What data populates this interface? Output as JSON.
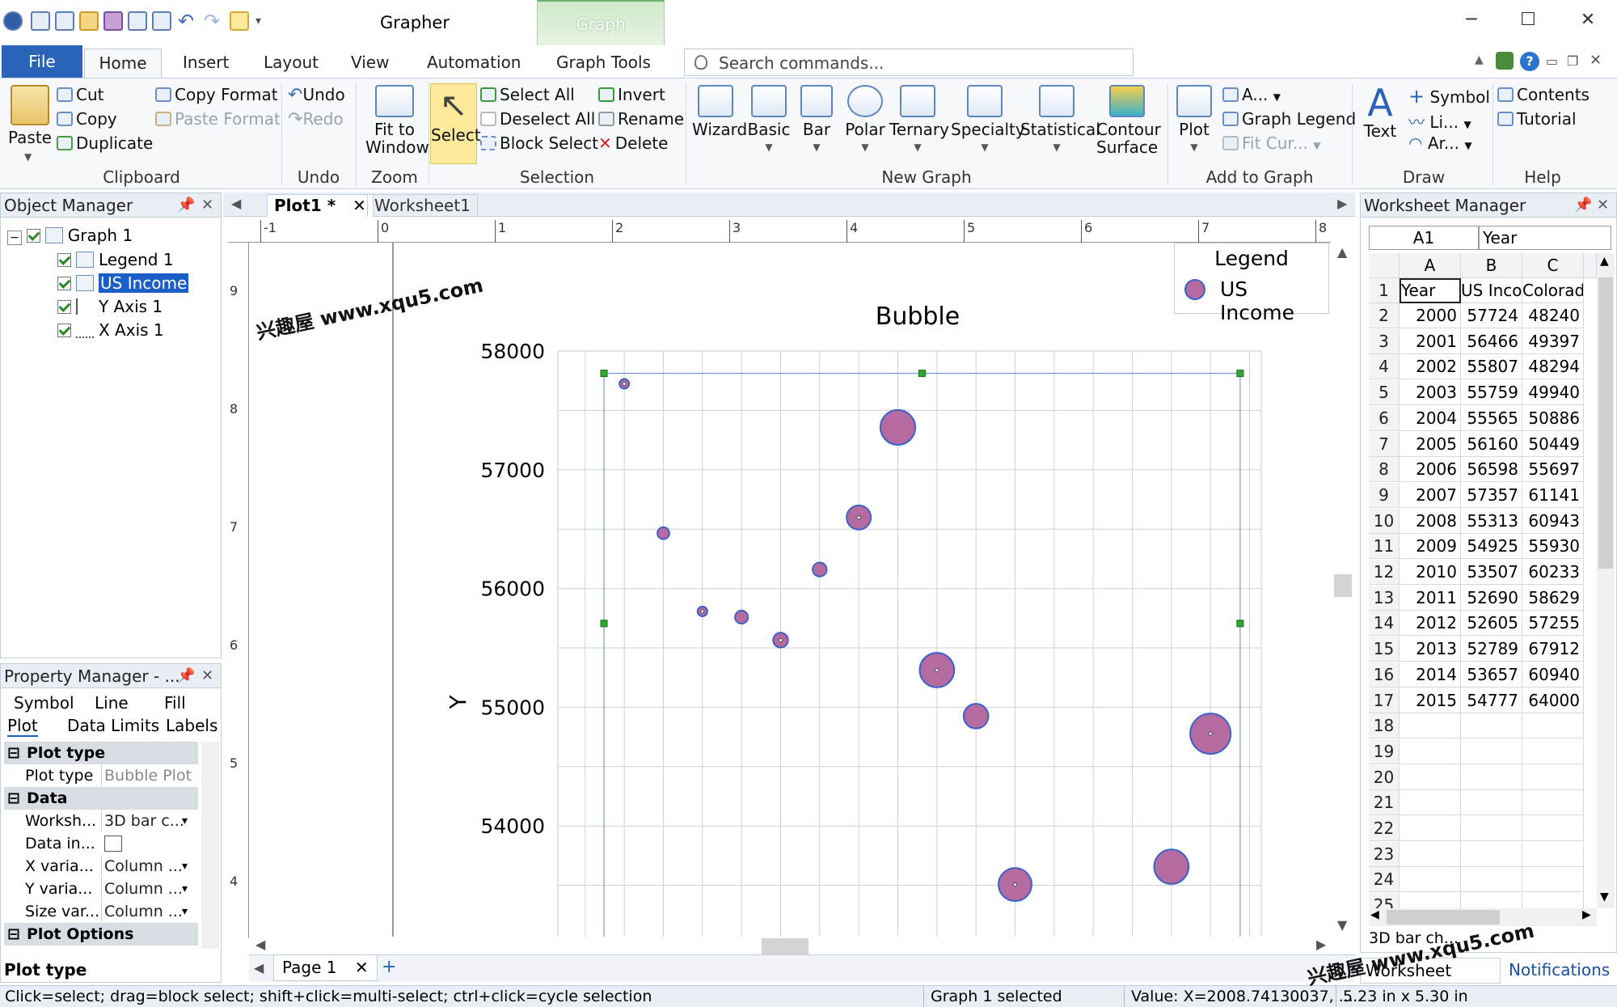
{
  "app": {
    "title": "Grapher",
    "context_tab": "Graph"
  },
  "ribbon_tabs": [
    "File",
    "Home",
    "Insert",
    "Layout",
    "View",
    "Automation",
    "Graph Tools"
  ],
  "search": {
    "placeholder": "Search commands..."
  },
  "clipboard": {
    "paste": "Paste",
    "cut": "Cut",
    "copy": "Copy",
    "duplicate": "Duplicate",
    "copy_format": "Copy Format",
    "paste_format": "Paste Format",
    "label": "Clipboard"
  },
  "undo": {
    "undo": "Undo",
    "redo": "Redo",
    "label": "Undo"
  },
  "zoom": {
    "fit_line1": "Fit to",
    "fit_line2": "Window",
    "label": "Zoom"
  },
  "selection": {
    "select": "Select",
    "select_all": "Select All",
    "deselect_all": "Deselect All",
    "block_select": "Block Select",
    "invert": "Invert",
    "rename": "Rename",
    "delete": "Delete",
    "label": "Selection"
  },
  "new_graph": {
    "wizard": "Wizard",
    "basic": "Basic",
    "bar": "Bar",
    "polar": "Polar",
    "ternary": "Ternary",
    "specialty": "Specialty",
    "statistical": "Statistical",
    "contour1": "Contour",
    "contour2": "Surface",
    "label": "New Graph"
  },
  "add_to_graph": {
    "plot": "Plot",
    "axis": "A...",
    "graph_legend": "Graph Legend",
    "fit_curve": "Fit Cur...",
    "label": "Add to Graph"
  },
  "draw": {
    "text": "Text",
    "symbol": "Symbol",
    "line": "Li...",
    "arc": "Ar...",
    "label": "Draw"
  },
  "help": {
    "contents": "Contents",
    "tutorial": "Tutorial",
    "label": "Help"
  },
  "object_manager": {
    "title": "Object Manager",
    "items": [
      "Graph 1",
      "Legend 1",
      "US Income",
      "Y Axis 1",
      "X Axis 1"
    ]
  },
  "property_manager": {
    "title": "Property Manager - ...",
    "tabs_row1": [
      "Symbol",
      "Line",
      "Fill"
    ],
    "tabs_row2": [
      "Plot",
      "Data Limits",
      "Labels"
    ],
    "sections": {
      "plot_type": "Plot type",
      "data": "Data",
      "plot_options": "Plot Options"
    },
    "rows": {
      "plot_type_k": "Plot type",
      "plot_type_v": "Bubble Plot",
      "worksheet_k": "Worksh...",
      "worksheet_v": "3D bar c...",
      "data_in_k": "Data in...",
      "xvar_k": "X varia...",
      "xvar_v": "Column ...",
      "yvar_k": "Y varia...",
      "yvar_v": "Column ...",
      "size_k": "Size var...",
      "size_v": "Column ..."
    },
    "footer": "Plot type"
  },
  "doc_tabs": [
    "Plot1 *",
    "Worksheet1"
  ],
  "page_tabs": [
    "Page 1"
  ],
  "rulers": {
    "h": [
      "-1",
      "0",
      "1",
      "2",
      "3",
      "4",
      "5",
      "6",
      "7",
      "8"
    ],
    "v": [
      "9",
      "8",
      "7",
      "6",
      "5",
      "4"
    ]
  },
  "chart_data": {
    "type": "scatter",
    "title": "Bubble",
    "ylabel": "Y",
    "xlabel": "",
    "ylim": [
      53000,
      58000
    ],
    "yticks": [
      53000,
      54000,
      55000,
      56000,
      57000,
      58000
    ],
    "xlim": [
      1998.3,
      2016.3
    ],
    "grid": true,
    "legend": {
      "title": "Legend",
      "placement": "top-right",
      "entries": [
        "US Income"
      ]
    },
    "series": [
      {
        "name": "US Income",
        "color": "#b56ba0",
        "edge": "#3a62c8",
        "points": [
          {
            "x": 2000,
            "y": 57724,
            "size": 48240
          },
          {
            "x": 2001,
            "y": 56466,
            "size": 49397
          },
          {
            "x": 2002,
            "y": 55807,
            "size": 48294
          },
          {
            "x": 2003,
            "y": 55759,
            "size": 49940
          },
          {
            "x": 2004,
            "y": 55565,
            "size": 50886
          },
          {
            "x": 2005,
            "y": 56160,
            "size": 50449
          },
          {
            "x": 2006,
            "y": 56598,
            "size": 55697
          },
          {
            "x": 2007,
            "y": 57357,
            "size": 61141
          },
          {
            "x": 2008,
            "y": 55313,
            "size": 60943
          },
          {
            "x": 2009,
            "y": 54925,
            "size": 55930
          },
          {
            "x": 2010,
            "y": 53507,
            "size": 60233
          },
          {
            "x": 2014,
            "y": 53657,
            "size": 60940
          },
          {
            "x": 2015,
            "y": 54777,
            "size": 64000
          }
        ]
      }
    ]
  },
  "worksheet_manager": {
    "title": "Worksheet Manager",
    "cell_ref": "A1",
    "cell_value": "Year",
    "columns": [
      "A",
      "B",
      "C"
    ],
    "header_row": [
      "Year",
      "US Inco",
      "Colorad"
    ],
    "rows": [
      [
        "2000",
        "57724",
        "48240"
      ],
      [
        "2001",
        "56466",
        "49397"
      ],
      [
        "2002",
        "55807",
        "48294"
      ],
      [
        "2003",
        "55759",
        "49940"
      ],
      [
        "2004",
        "55565",
        "50886"
      ],
      [
        "2005",
        "56160",
        "50449"
      ],
      [
        "2006",
        "56598",
        "55697"
      ],
      [
        "2007",
        "57357",
        "61141"
      ],
      [
        "2008",
        "55313",
        "60943"
      ],
      [
        "2009",
        "54925",
        "55930"
      ],
      [
        "2010",
        "53507",
        "60233"
      ],
      [
        "2011",
        "52690",
        "58629"
      ],
      [
        "2012",
        "52605",
        "57255"
      ],
      [
        "2013",
        "52789",
        "67912"
      ],
      [
        "2014",
        "53657",
        "60940"
      ],
      [
        "2015",
        "54777",
        "64000"
      ]
    ],
    "empty_rows": [
      "18",
      "19",
      "20",
      "21",
      "22",
      "23",
      "24",
      "25"
    ],
    "sheet_name": "3D bar ch...",
    "bottom_tabs": [
      "Worksheet Man...",
      "Notifications"
    ]
  },
  "status": {
    "hint": "Click=select; drag=block select; shift+click=multi-select; ctrl+click=cycle selection",
    "selection": "Graph 1 selected",
    "value": "Value: X=2008.74130037, ...",
    "size": "5.23 in x 5.30 in"
  },
  "watermarks": [
    "兴趣屋 www.xqu5.com",
    "兴趣屋 www.xqu5.com"
  ]
}
